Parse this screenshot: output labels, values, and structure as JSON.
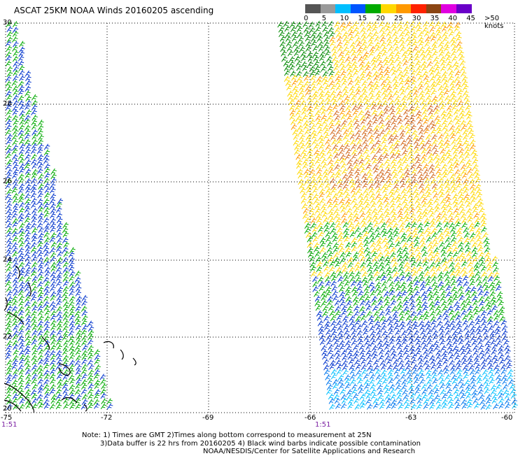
{
  "title": "ASCAT 25KM NOAA Winds 20160205 ascending",
  "legend": {
    "labels": [
      "0",
      "5",
      "10",
      "15",
      "20",
      "25",
      "30",
      "35",
      "40",
      "45",
      ">50 knots"
    ],
    "colors": [
      "#555555",
      "#9a9a9a",
      "#00bfff",
      "#0055ff",
      "#00aa00",
      "#ffd800",
      "#ff9900",
      "#ff2200",
      "#8b4513",
      "#e000e0",
      "#6a00c8"
    ]
  },
  "axes": {
    "lat_labels": [
      "30",
      "28",
      "26",
      "24",
      "22",
      "20"
    ],
    "lon_labels": [
      "-75",
      "-72",
      "-69",
      "-66",
      "-63",
      "-60"
    ]
  },
  "times": [
    "1:51",
    "1:51"
  ],
  "notes": [
    "Note: 1) Times are GMT 2)Times along bottom correspond to measurement at 25N",
    "3)Data buffer is 22 hrs from 20160205 4) Black wind barbs indicate possible contamination",
    "NOAA/NESDIS/Center for Satellite Applications and Research"
  ],
  "colors": {
    "grid": "#000000",
    "land": "#000000",
    "time_text": "#7b1fa2"
  }
}
